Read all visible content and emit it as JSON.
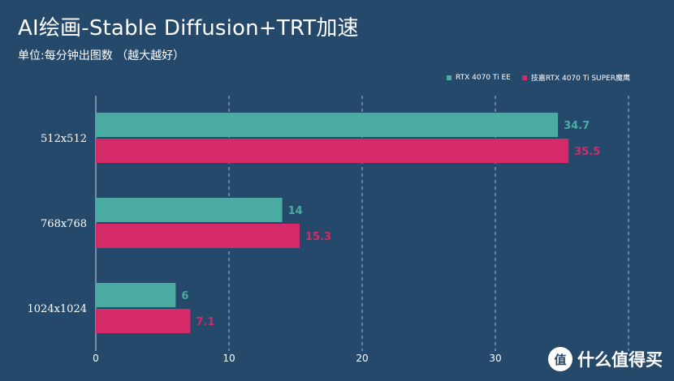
{
  "chart_data": {
    "type": "bar",
    "orientation": "horizontal",
    "title": "AI绘画-Stable Diffusion+TRT加速",
    "subtitle": "单位:每分钟出图数 （越大越好）",
    "categories": [
      "512x512",
      "768x768",
      "1024x1024"
    ],
    "series": [
      {
        "name": "RTX 4070 Ti EE",
        "values": [
          34.7,
          14,
          6
        ],
        "color": "#4aaba3"
      },
      {
        "name": "技嘉RTX 4070 Ti SUPER魔鹰",
        "values": [
          35.5,
          15.3,
          7.1
        ],
        "color": "#d42a67"
      }
    ],
    "xlim": [
      0,
      40
    ],
    "xticks": [
      0,
      10,
      20,
      30
    ],
    "grid": true,
    "legend_position": "top-right"
  },
  "watermark": {
    "logo_glyph": "值",
    "text": "什么值得买"
  }
}
